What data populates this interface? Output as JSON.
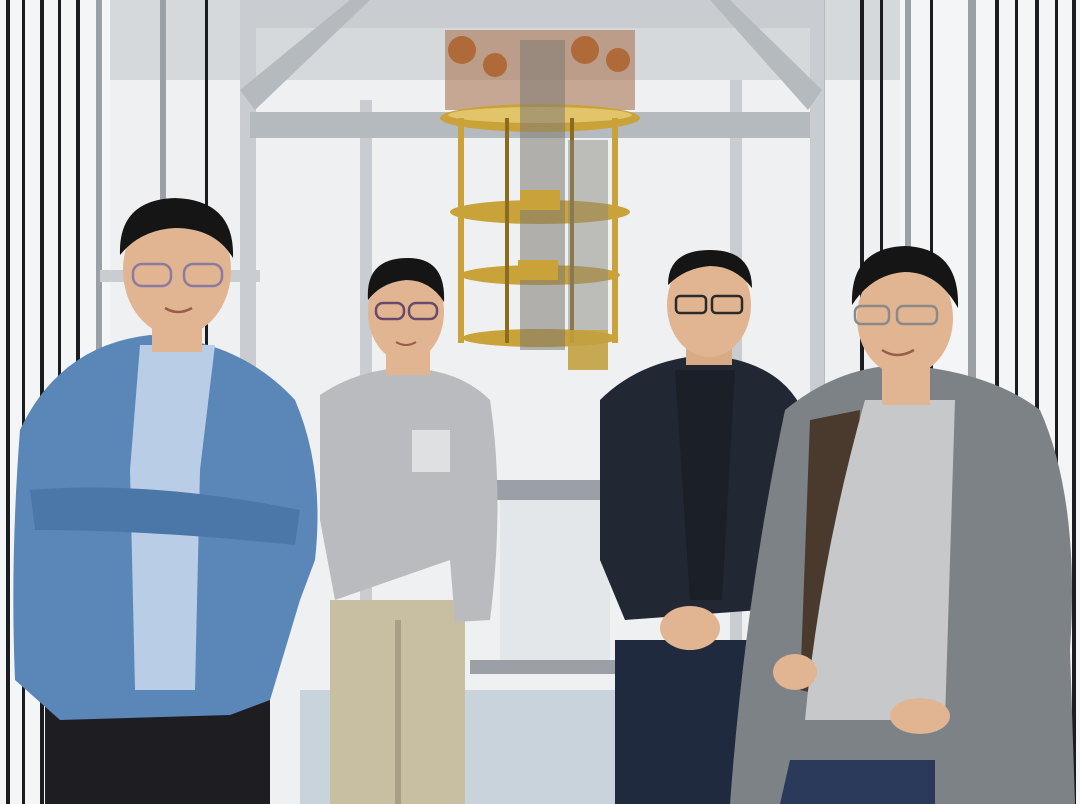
{
  "scene": {
    "subjects": [
      {
        "id": "person-1",
        "jacket": "#5b86b8",
        "inner": "#b9cde6",
        "pants": "#1d1d22"
      },
      {
        "id": "person-2",
        "top": "#b9bbbe",
        "pants": "#c8bfa3"
      },
      {
        "id": "person-3",
        "jacket": "#222833",
        "shirt": "#1a1f28",
        "pants": "#1f2a3f"
      },
      {
        "id": "person-4",
        "coat": "#7d8287",
        "sweater": "#c7c8c9",
        "pants": "#2b3a5a"
      }
    ],
    "palette": {
      "wall": "#eef0f1",
      "frame": "#c9cdd1",
      "frame_dark": "#9aa0a6",
      "stripe": "#1a1c20",
      "gold": "#c9a23a",
      "gold_dark": "#8b6b1f",
      "copper": "#b06a3a",
      "floor": "#c9d3dc",
      "skin": "#e2b592",
      "hair": "#151515"
    }
  }
}
